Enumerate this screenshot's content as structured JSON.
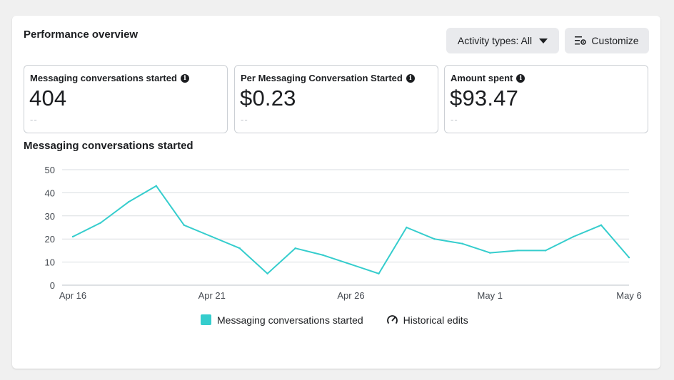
{
  "header": {
    "title": "Performance overview",
    "activity_label": "Activity types: All",
    "customize_label": "Customize"
  },
  "metrics": [
    {
      "label": "Messaging conversations started",
      "value": "404",
      "sub": "--"
    },
    {
      "label": "Per Messaging Conversation Started",
      "value": "$0.23",
      "sub": "--"
    },
    {
      "label": "Amount spent",
      "value": "$93.47",
      "sub": "--"
    }
  ],
  "chart_title": "Messaging conversations started",
  "legend": {
    "series_label": "Messaging conversations started",
    "historical_label": "Historical edits"
  },
  "colors": {
    "series": "#35cdcd",
    "grid": "#dadde1",
    "axis": "#444950"
  },
  "chart_data": {
    "type": "line",
    "x": [
      "Apr 16",
      "Apr 17",
      "Apr 18",
      "Apr 19",
      "Apr 20",
      "Apr 21",
      "Apr 22",
      "Apr 23",
      "Apr 24",
      "Apr 25",
      "Apr 26",
      "Apr 27",
      "Apr 28",
      "Apr 29",
      "Apr 30",
      "May 1",
      "May 2",
      "May 3",
      "May 4",
      "May 5",
      "May 6"
    ],
    "series": [
      {
        "name": "Messaging conversations started",
        "values": [
          21,
          27,
          36,
          43,
          26,
          21,
          16,
          5,
          16,
          13,
          9,
          5,
          25,
          20,
          18,
          14,
          15,
          15,
          21,
          26,
          12
        ]
      }
    ],
    "x_tick_labels": [
      "Apr 16",
      "Apr 21",
      "Apr 26",
      "May 1",
      "May 6"
    ],
    "y_ticks": [
      0,
      10,
      20,
      30,
      40,
      50
    ],
    "ylim": [
      0,
      50
    ],
    "grid": true,
    "legend_position": "bottom"
  }
}
